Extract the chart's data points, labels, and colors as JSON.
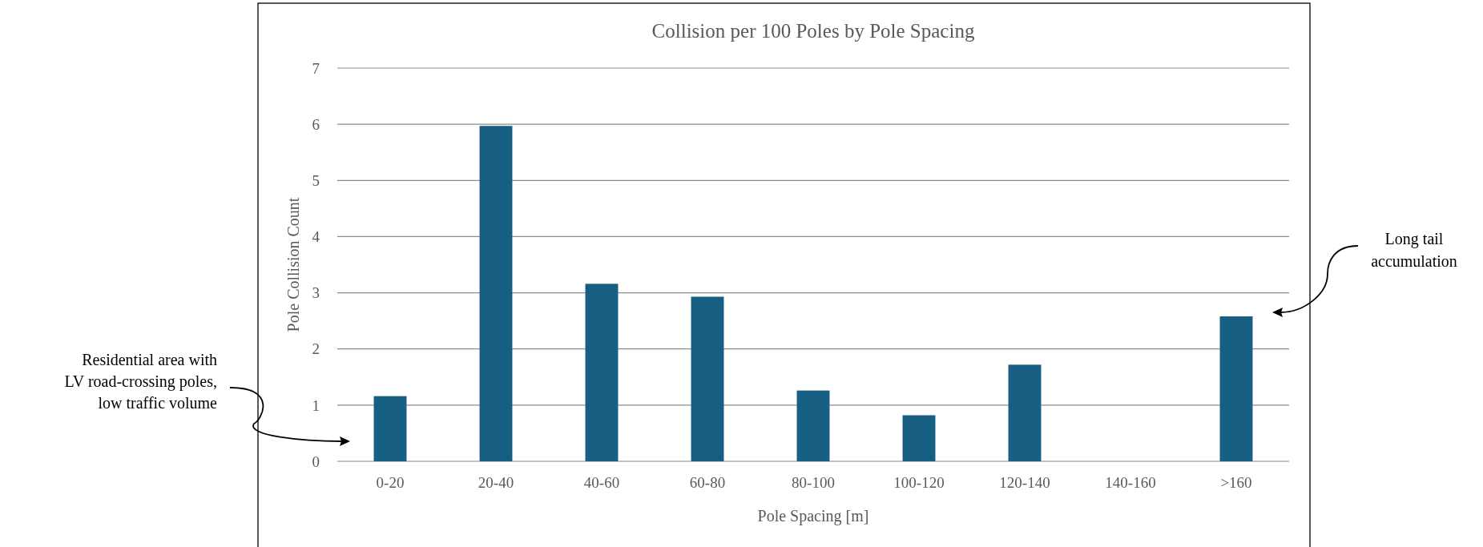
{
  "chart_data": {
    "type": "bar",
    "title": "Collision per 100 Poles by Pole Spacing",
    "xlabel": "Pole Spacing [m]",
    "ylabel": "Pole Collision Count",
    "categories": [
      "0-20",
      "20-40",
      "40-60",
      "60-80",
      "80-100",
      "100-120",
      "120-140",
      "140-160",
      ">160"
    ],
    "values": [
      1.16,
      5.97,
      3.16,
      2.93,
      1.26,
      0.82,
      1.72,
      0,
      2.58
    ],
    "color": "#175f82",
    "ylim": [
      0,
      7
    ],
    "yticks": [
      0,
      1,
      2,
      3,
      4,
      5,
      6,
      7
    ],
    "grid": "y",
    "annotations": [
      "Residential area with\nLV road-crossing poles,\nlow traffic volume",
      "Long tail\naccumulation"
    ]
  }
}
